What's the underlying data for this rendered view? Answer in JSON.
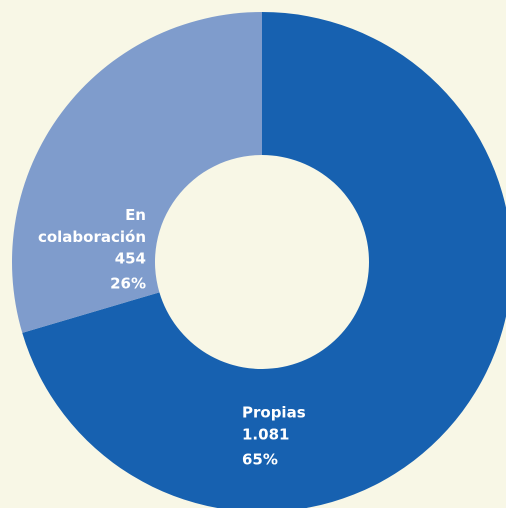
{
  "chart_data": {
    "type": "donut",
    "categories": [
      "Propias",
      "En colaboración"
    ],
    "values": [
      1081,
      454
    ],
    "value_labels": [
      "1.081",
      "454"
    ],
    "percentages": [
      65,
      26
    ],
    "percentage_labels": [
      "65%",
      "26%"
    ],
    "colors": [
      "#1761b0",
      "#7f9ccc"
    ]
  }
}
